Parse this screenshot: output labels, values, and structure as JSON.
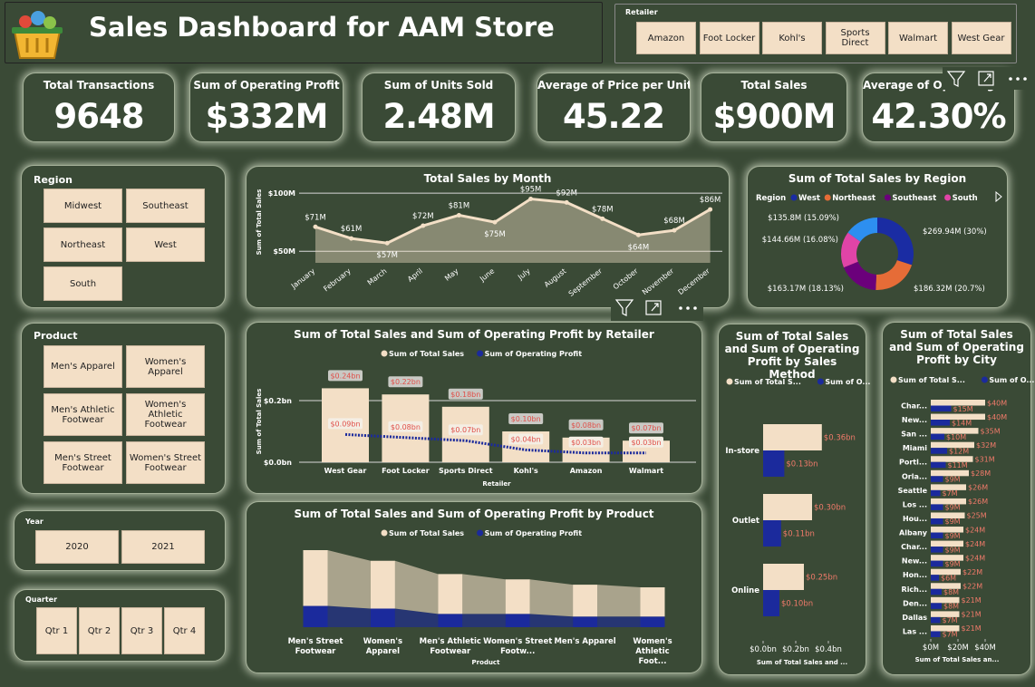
{
  "header": {
    "title": "Sales Dashboard for AAM Store"
  },
  "slicers": {
    "retailer": {
      "label": "Retailer",
      "options": [
        "Amazon",
        "Foot Locker",
        "Kohl's",
        "Sports Direct",
        "Walmart",
        "West Gear"
      ]
    },
    "region": {
      "label": "Region",
      "options": [
        "Midwest",
        "Southeast",
        "Northeast",
        "West",
        "South"
      ]
    },
    "product": {
      "label": "Product",
      "options": [
        "Men's Apparel",
        "Women's Apparel",
        "Men's Athletic Footwear",
        "Women's Athletic Footwear",
        "Men's Street Footwear",
        "Women's Street Footwear"
      ]
    },
    "year": {
      "label": "Year",
      "options": [
        "2020",
        "2021"
      ]
    },
    "quarter": {
      "label": "Quarter",
      "options": [
        "Qtr 1",
        "Qtr 2",
        "Qtr 3",
        "Qtr 4"
      ]
    }
  },
  "kpis": [
    {
      "label": "Total Transactions",
      "value": "9648"
    },
    {
      "label": "Sum of Operating Profit",
      "value": "$332M"
    },
    {
      "label": "Sum of Units Sold",
      "value": "2.48M"
    },
    {
      "label": "Average of Price per Unit",
      "value": "45.22"
    },
    {
      "label": "Total Sales",
      "value": "$900M"
    },
    {
      "label": "Average of Operating Profit",
      "value": "42.30%"
    }
  ],
  "chart_data": [
    {
      "type": "line",
      "title": "Total Sales by Month",
      "y_label": "Sum of Total Sales",
      "categories": [
        "January",
        "February",
        "March",
        "April",
        "May",
        "June",
        "July",
        "August",
        "September",
        "October",
        "November",
        "December"
      ],
      "values": [
        71,
        61,
        57,
        72,
        81,
        75,
        95,
        92,
        78,
        64,
        68,
        86
      ],
      "value_labels": [
        "$71M",
        "$61M",
        "$57M",
        "$72M",
        "$81M",
        "$75M",
        "$95M",
        "$92M",
        "$78M",
        "$64M",
        "$68M",
        "$86M"
      ],
      "color": "#f3dfc6",
      "ylim": [
        40,
        104
      ],
      "yticks": [
        {
          "value": 50,
          "label": "$50M"
        },
        {
          "value": 100,
          "label": "$100M"
        }
      ],
      "grid": true
    },
    {
      "type": "donut",
      "title": "Sum of Total Sales by Region",
      "legend_title": "Region",
      "categories": [
        "West",
        "Northeast",
        "Southeast",
        "South",
        null
      ],
      "values": [
        269.94,
        186.32,
        163.17,
        144.66,
        135.8
      ],
      "value_labels": [
        "$269.94M (30%)",
        "$186.32M (20.7%)",
        "$163.17M (18.13%)",
        "$144.66M (16.08%)",
        "$135.8M (15.09%)"
      ],
      "colors": [
        "#1a2ca3",
        "#e66c37",
        "#6b007b",
        "#e044a7",
        "#2d8ff0"
      ]
    },
    {
      "type": "bar_line",
      "title": "Sum of Total Sales and Sum of Operating Profit by Retailer",
      "x_label": "Retailer",
      "y_label": "Sum of Total Sales",
      "categories": [
        "West Gear",
        "Foot Locker",
        "Sports Direct",
        "Kohl's",
        "Amazon",
        "Walmart"
      ],
      "series": [
        {
          "name": "Sum of Total Sales",
          "color": "#f3dfc6",
          "values": [
            0.24,
            0.22,
            0.18,
            0.1,
            0.08,
            0.07
          ],
          "value_labels": [
            "$0.24bn",
            "$0.22bn",
            "$0.18bn",
            "$0.10bn",
            "$0.08bn",
            "$0.07bn"
          ]
        },
        {
          "name": "Sum of Operating Profit",
          "color": "#1b2a9c",
          "values": [
            0.09,
            0.08,
            0.07,
            0.04,
            0.03,
            0.03
          ],
          "value_labels": [
            "$0.09bn",
            "$0.08bn",
            "$0.07bn",
            "$0.04bn",
            "$0.03bn",
            "$0.03bn"
          ]
        }
      ],
      "ylim": [
        0,
        0.3
      ],
      "yticks": [
        {
          "value": 0,
          "label": "$0.0bn"
        },
        {
          "value": 0.2,
          "label": "$0.2bn"
        }
      ],
      "grid": true
    },
    {
      "type": "ribbon",
      "title": "Sum of Total Sales and Sum of Operating Profit by Product",
      "x_label": "Product",
      "categories": [
        "Men's Street Footwear",
        "Women's Apparel",
        "Men's Athletic Footwear",
        "Women's Street Footw...",
        "Men's Apparel",
        "Women's Athletic Foot..."
      ],
      "series": [
        {
          "name": "Sum of Total Sales",
          "color": "#f3dfc6",
          "values": [
            0.21,
            0.18,
            0.15,
            0.13,
            0.12,
            0.11
          ]
        },
        {
          "name": "Sum of Operating Profit",
          "color": "#1b2a9c",
          "values": [
            0.08,
            0.07,
            0.05,
            0.05,
            0.04,
            0.04
          ]
        }
      ]
    },
    {
      "type": "hbar",
      "title": "Sum of Total Sales and Sum of Operating Profit by Sales Method",
      "x_label": "Sum of Total Sales and ...",
      "categories": [
        "In-store",
        "Outlet",
        "Online"
      ],
      "series": [
        {
          "name": "Sum of Total S...",
          "color": "#f3dfc6",
          "values": [
            0.36,
            0.3,
            0.25
          ],
          "value_labels": [
            "$0.36bn",
            "$0.30bn",
            "$0.25bn"
          ]
        },
        {
          "name": "Sum of O...",
          "color": "#1b2a9c",
          "values": [
            0.13,
            0.11,
            0.1
          ],
          "value_labels": [
            "$0.13bn",
            "$0.11bn",
            "$0.10bn"
          ]
        }
      ],
      "xlim": [
        0,
        0.55
      ],
      "xticks": [
        {
          "value": 0,
          "label": "$0.0bn"
        },
        {
          "value": 0.2,
          "label": "$0.2bn"
        },
        {
          "value": 0.4,
          "label": "$0.4bn"
        }
      ]
    },
    {
      "type": "hbar",
      "title": "Sum of Total Sales and Sum of Operating Profit by City",
      "x_label": "Sum of Total Sales an...",
      "categories": [
        "Char...",
        "New...",
        "San ...",
        "Miami",
        "Portl...",
        "Orla...",
        "Seattle",
        "Los ...",
        "Hou...",
        "Albany",
        "Char...",
        "New...",
        "Hon...",
        "Rich...",
        "Den...",
        "Dallas",
        "Las ..."
      ],
      "series": [
        {
          "name": "Sum of Total S...",
          "color": "#f3dfc6",
          "values": [
            40,
            40,
            35,
            32,
            31,
            28,
            26,
            26,
            25,
            24,
            24,
            24,
            22,
            22,
            21,
            21,
            21
          ],
          "value_labels": [
            "$40M",
            "$40M",
            "$35M",
            "$32M",
            "$31M",
            "$28M",
            "$26M",
            "$26M",
            "$25M",
            "$24M",
            "$24M",
            "$24M",
            "$22M",
            "$22M",
            "$21M",
            "$21M",
            "$21M"
          ]
        },
        {
          "name": "Sum of O...",
          "color": "#1b2a9c",
          "values": [
            15,
            14,
            10,
            12,
            11,
            9,
            7,
            9,
            9,
            9,
            9,
            9,
            6,
            8,
            8,
            7,
            7
          ],
          "value_labels": [
            "$15M",
            "$14M",
            "$10M",
            "$12M",
            "$11M",
            "$9M",
            "$7M",
            "$9M",
            "$9M",
            "$9M",
            "$9M",
            "$9M",
            "$6M",
            "$8M",
            "$8M",
            "$7M",
            "$7M"
          ]
        }
      ],
      "xlim": [
        0,
        44
      ],
      "xticks": [
        {
          "value": 0,
          "label": "$0M"
        },
        {
          "value": 20,
          "label": "$20M"
        },
        {
          "value": 40,
          "label": "$40M"
        }
      ]
    }
  ]
}
